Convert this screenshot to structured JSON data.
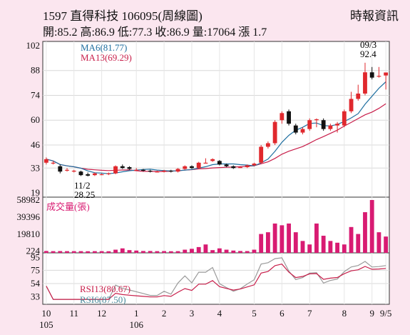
{
  "header": {
    "title": "1597  直得科技 106095(周線圖)",
    "stats": "開:85.2 高:86.9 低:77.3 收:86.9 量:17064 漲 1.7",
    "source": "時報資訊"
  },
  "colors": {
    "ma6": "#1f6fa0",
    "ma13": "#c81e4a",
    "up": "#e0282d",
    "down": "#111111",
    "volume": "#d81b72",
    "rsi13": "#c81e4a",
    "rsi6": "#9a9a9a"
  },
  "chart_data": [
    {
      "type": "candlestick",
      "ylim": [
        19,
        102
      ],
      "yticks": [
        102,
        88,
        74,
        60,
        46,
        33,
        19
      ],
      "x_labels": [
        "10",
        "11",
        "12",
        "1",
        "2",
        "3",
        "4",
        "5",
        "6",
        "7",
        "8",
        "9",
        "9/5"
      ],
      "x_sublabels": [
        "105",
        "106"
      ],
      "legend": [
        "MA6(81.77)",
        "MA13(69.29)"
      ],
      "annotations": [
        {
          "text": "11/2",
          "value": 28.25
        },
        {
          "text": "28.25"
        },
        {
          "text": "09/3",
          "value": 92.4
        },
        {
          "text": "92.4"
        }
      ],
      "candles": [
        {
          "o": 36,
          "c": 38,
          "h": 39,
          "l": 35
        },
        {
          "o": 36,
          "c": 36,
          "h": 37,
          "l": 35
        },
        {
          "o": 34,
          "c": 31,
          "h": 35,
          "l": 30
        },
        {
          "o": 32,
          "c": 32,
          "h": 33,
          "l": 31
        },
        {
          "o": 31,
          "c": 31.5,
          "h": 32,
          "l": 30.5
        },
        {
          "o": 31,
          "c": 29,
          "h": 31.5,
          "l": 28.5
        },
        {
          "o": 29.5,
          "c": 28.7,
          "h": 30.5,
          "l": 28.25
        },
        {
          "o": 29,
          "c": 30,
          "h": 30.5,
          "l": 28.5
        },
        {
          "o": 29.5,
          "c": 29.5,
          "h": 30,
          "l": 29
        },
        {
          "o": 29.5,
          "c": 30,
          "h": 30.5,
          "l": 29
        },
        {
          "o": 30,
          "c": 34,
          "h": 34.5,
          "l": 29.5
        },
        {
          "o": 34,
          "c": 33,
          "h": 35,
          "l": 32.5
        },
        {
          "o": 33.5,
          "c": 32.5,
          "h": 34,
          "l": 32
        },
        {
          "o": 32,
          "c": 32,
          "h": 33,
          "l": 31.5
        },
        {
          "o": 32,
          "c": 31.5,
          "h": 32.5,
          "l": 31
        },
        {
          "o": 31.5,
          "c": 31,
          "h": 32,
          "l": 30.5
        },
        {
          "o": 31,
          "c": 31,
          "h": 31.5,
          "l": 30.5
        },
        {
          "o": 31,
          "c": 31.5,
          "h": 32,
          "l": 30.5
        },
        {
          "o": 31.5,
          "c": 31,
          "h": 32,
          "l": 30.5
        },
        {
          "o": 31,
          "c": 32.5,
          "h": 33,
          "l": 30.5
        },
        {
          "o": 32.5,
          "c": 34,
          "h": 34.5,
          "l": 32
        },
        {
          "o": 34,
          "c": 33,
          "h": 34.5,
          "l": 32.5
        },
        {
          "o": 33,
          "c": 36,
          "h": 36.5,
          "l": 32.5
        },
        {
          "o": 36,
          "c": 36,
          "h": 38.5,
          "l": 35.5
        },
        {
          "o": 37,
          "c": 38,
          "h": 38.5,
          "l": 36.5
        },
        {
          "o": 37,
          "c": 35,
          "h": 37.5,
          "l": 34.5
        },
        {
          "o": 35,
          "c": 34,
          "h": 35.5,
          "l": 33.5
        },
        {
          "o": 34,
          "c": 33,
          "h": 34.5,
          "l": 32.5
        },
        {
          "o": 33.5,
          "c": 33.5,
          "h": 34,
          "l": 33
        },
        {
          "o": 33.5,
          "c": 34.5,
          "h": 35,
          "l": 33
        },
        {
          "o": 34.5,
          "c": 35.5,
          "h": 36,
          "l": 34
        },
        {
          "o": 36,
          "c": 45,
          "h": 46,
          "l": 35.5
        },
        {
          "o": 45,
          "c": 47,
          "h": 48,
          "l": 44
        },
        {
          "o": 47,
          "c": 59,
          "h": 60,
          "l": 46
        },
        {
          "o": 60,
          "c": 64,
          "h": 65,
          "l": 58
        },
        {
          "o": 65,
          "c": 58,
          "h": 66,
          "l": 57
        },
        {
          "o": 57,
          "c": 53,
          "h": 58,
          "l": 52
        },
        {
          "o": 53,
          "c": 55,
          "h": 56,
          "l": 52
        },
        {
          "o": 55,
          "c": 60,
          "h": 61,
          "l": 54
        },
        {
          "o": 60,
          "c": 60.5,
          "h": 61,
          "l": 56
        },
        {
          "o": 60,
          "c": 55,
          "h": 61,
          "l": 54
        },
        {
          "o": 55,
          "c": 57,
          "h": 58,
          "l": 54
        },
        {
          "o": 57,
          "c": 58,
          "h": 59,
          "l": 53
        },
        {
          "o": 57,
          "c": 65,
          "h": 66,
          "l": 56
        },
        {
          "o": 65,
          "c": 72,
          "h": 76,
          "l": 64
        },
        {
          "o": 72,
          "c": 75,
          "h": 80,
          "l": 71
        },
        {
          "o": 75,
          "c": 87,
          "h": 92.4,
          "l": 74
        },
        {
          "o": 87,
          "c": 84,
          "h": 90,
          "l": 83
        },
        {
          "o": 85,
          "c": 85,
          "h": 90,
          "l": 84
        },
        {
          "o": 85.2,
          "c": 86.9,
          "h": 86.9,
          "l": 77.3
        }
      ]
    },
    {
      "type": "bar",
      "title": "成交量(張)",
      "yticks": [
        58982,
        39396,
        19810,
        224
      ],
      "ylim": [
        0,
        58982
      ],
      "values": [
        500,
        300,
        400,
        300,
        300,
        300,
        200,
        300,
        300,
        200,
        2000,
        3500,
        1500,
        1000,
        500,
        500,
        300,
        400,
        200,
        300,
        2000,
        3000,
        5000,
        8000,
        1500,
        3500,
        2000,
        1000,
        500,
        400,
        2000,
        20000,
        22000,
        32000,
        30000,
        32000,
        22000,
        12000,
        8000,
        32000,
        18000,
        12000,
        10000,
        8000,
        28000,
        20000,
        45000,
        58982,
        22000,
        17064
      ]
    },
    {
      "type": "line",
      "yticks": [
        95,
        75,
        54,
        33
      ],
      "ylim": [
        28,
        98
      ],
      "legend": [
        "RSI13(80.67)",
        "RSI6(87.50)"
      ]
    }
  ]
}
